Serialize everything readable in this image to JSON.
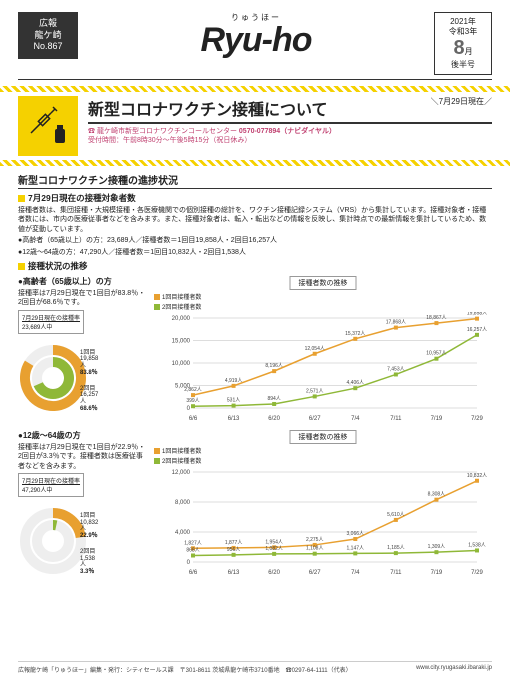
{
  "header": {
    "issue_line1": "広報",
    "issue_line2": "龍ケ崎",
    "issue_no": "No.867",
    "logo_ruby": "りゅうほー",
    "logo": "Ryu-ho",
    "year_wa": "2021年",
    "year_reiwa": "令和3年",
    "month": "8",
    "month_suffix": "月",
    "half": "後半号"
  },
  "main_title": "新型コロナワクチン接種について",
  "as_of": "＼7月29日現在／",
  "contact": {
    "org": "龍ケ崎市新型コロナワクチンコールセンター",
    "phone": "0570-077894（ナビダイヤル）",
    "hours": "受付時間：午前8時30分～午後5時15分（祝日休み）"
  },
  "section_title": "新型コロナワクチン接種の進捗状況",
  "sub1_title": "7月29日現在の接種対象者数",
  "sub1_para": "接種者数は、集団接種・大規模接種・各医療機関での個別接種の総計を、ワクチン接種記録システム（VRS）から集計しています。接種対象者・接種者数には、市内の医療従事者などを含みます。また、接種対象者は、転入・転出などの情報を反映し、集計時点での最新情報を集計しているため、数値が変動しています。",
  "stat_elder": "●高齢者（65歳以上）の方：23,689人／接種者数＝1回目19,858人・2回目16,257人",
  "stat_other": "●12歳～64歳の方：47,290人／接種者数＝1回目10,832人・2回目1,538人",
  "sub2_title": "接種状況の推移",
  "group1": {
    "name": "●高齢者（65歳以上）の方",
    "rate_text": "接種率は7月29日現在で1回目が83.8％・2回目が68.6％です。",
    "box_title": "7月29日現在の接種率",
    "box_total": "23,689人中",
    "dose1_n": "19,858人",
    "dose1_pct": "83.8％",
    "dose1_pct_num": 83.8,
    "dose2_n": "16,257人",
    "dose2_pct": "68.6％",
    "dose2_pct_num": 68.6,
    "chart_title": "接種者数の推移",
    "legend1": "1回目接種者数",
    "legend2": "2回目接種者数",
    "x": [
      "6/6",
      "6/13",
      "6/20",
      "6/27",
      "7/4",
      "7/11",
      "7/19",
      "7/29"
    ],
    "y_max": 20000,
    "y_ticks": [
      0,
      5000,
      10000,
      15000,
      20000
    ],
    "dose1_vals": [
      2862,
      4919,
      8196,
      12054,
      15372,
      17868,
      18867,
      19858
    ],
    "dose2_vals": [
      399,
      531,
      894,
      2571,
      4406,
      7453,
      10957,
      16257
    ],
    "colors": {
      "dose1": "#e8a030",
      "dose2": "#8fb838",
      "grid": "#dddddd",
      "axis": "#888888",
      "text": "#444444"
    }
  },
  "group2": {
    "name": "●12歳～64歳の方",
    "rate_text": "接種率は7月29日現在で1回目が22.9％・2回目が3.3％です。接種者数は医療従事者などを含みます。",
    "box_title": "7月29日現在の接種率",
    "box_total": "47,290人中",
    "dose1_n": "10,832人",
    "dose1_pct": "22.9％",
    "dose1_pct_num": 22.9,
    "dose2_n": "1,538人",
    "dose2_pct": "3.3％",
    "dose2_pct_num": 3.3,
    "chart_title": "接種者数の推移",
    "legend1": "1回目接種者数",
    "legend2": "2回目接種者数",
    "x": [
      "6/6",
      "6/13",
      "6/20",
      "6/27",
      "7/4",
      "7/11",
      "7/19",
      "7/29"
    ],
    "y_max": 12000,
    "y_ticks": [
      0,
      4000,
      8000,
      12000
    ],
    "dose1_vals": [
      1827,
      1877,
      1954,
      2275,
      3066,
      5610,
      8308,
      10832
    ],
    "dose2_vals": [
      868,
      956,
      1082,
      1108,
      1147,
      1185,
      1309,
      1538
    ],
    "colors": {
      "dose1": "#e8a030",
      "dose2": "#8fb838",
      "grid": "#dddddd",
      "axis": "#888888",
      "text": "#444444"
    }
  },
  "d1_label": "1回目",
  "d2_label": "2回目",
  "footer": {
    "left": "広報龍ケ崎「りゅうほー」編集・発行：シティセールス課　〒301-8611 茨城県龍ケ崎市3710番地　☎0297-64-1111（代表）",
    "right": "www.city.ryugasaki.ibaraki.jp"
  }
}
